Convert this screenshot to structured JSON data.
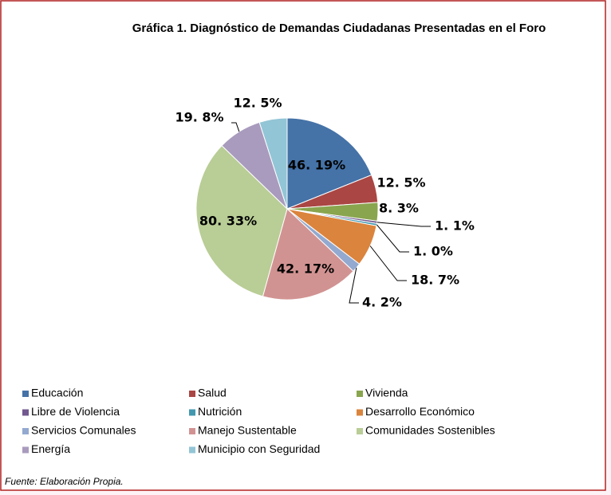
{
  "chart_data": {
    "type": "pie",
    "title": "Gráfica 1. Diagnóstico de Demandas Ciudadanas Presentadas en el Foro",
    "categories": [
      "Educación",
      "Salud",
      "Vivienda",
      "Libre de Violencia",
      "Nutrición",
      "Desarrollo Económico",
      "Servicios Comunales",
      "Manejo Sustentable",
      "Comunidades Sostenibles",
      "Energía",
      "Municipio con Seguridad"
    ],
    "values": [
      46,
      12,
      8,
      1,
      1,
      18,
      4,
      42,
      80,
      19,
      12
    ],
    "value_labels": [
      "46. 19%",
      "12. 5%",
      "8. 3%",
      "1. 1%",
      "1. 0%",
      "18. 7%",
      "4. 2%",
      "42. 17%",
      "80. 33%",
      "19. 8%",
      "12. 5%"
    ],
    "colors": [
      "#4572a7",
      "#aa4643",
      "#89a54e",
      "#71588f",
      "#4198af",
      "#db843d",
      "#93a9cf",
      "#d19392",
      "#b9cd96",
      "#a99bbd",
      "#92c5d6"
    ],
    "legend": "bottom",
    "source": "Fuente: Elaboración Propia."
  }
}
